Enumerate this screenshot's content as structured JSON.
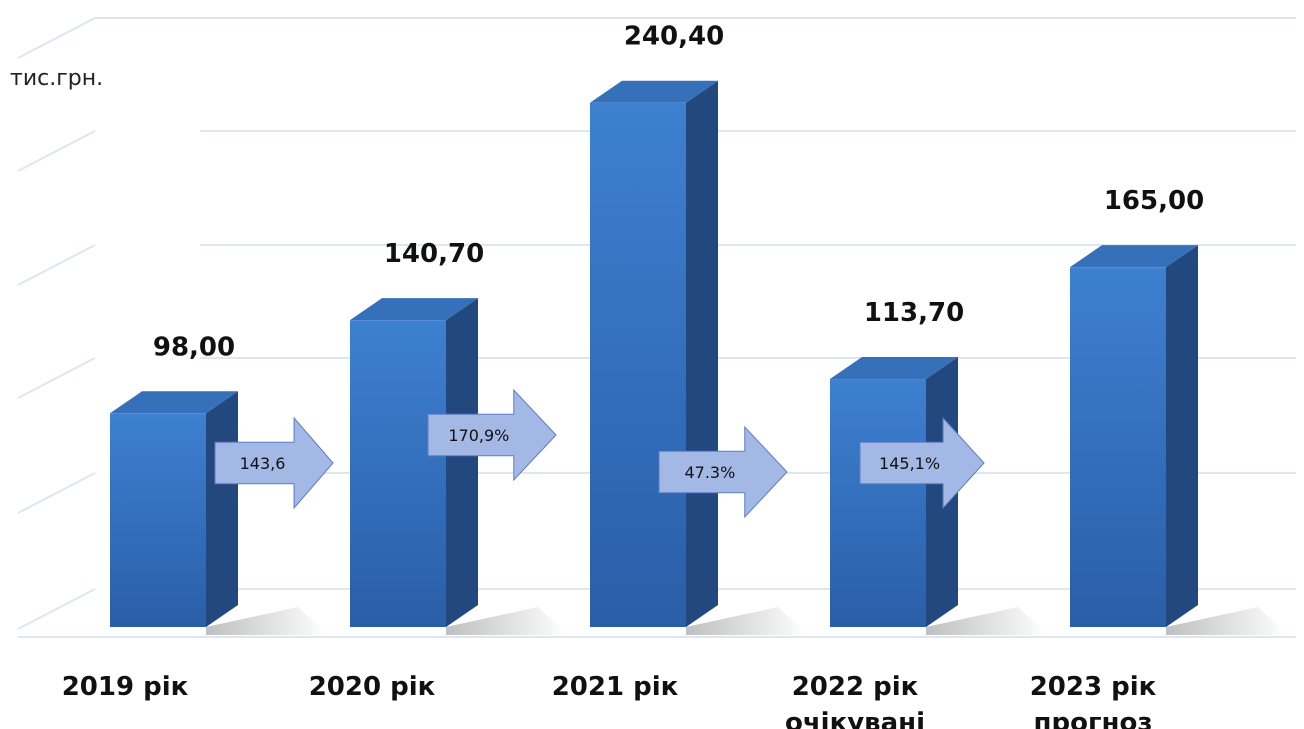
{
  "chart_data": {
    "type": "bar",
    "ylabel": "тис.грн.",
    "ylim": [
      0,
      260
    ],
    "grid": true,
    "categories": [
      [
        "2019 рік"
      ],
      [
        "2020 рік"
      ],
      [
        "2021 рік"
      ],
      [
        "2022 рік",
        "очікувані"
      ],
      [
        "2023 рік",
        "прогноз"
      ]
    ],
    "values": [
      98.0,
      140.7,
      240.4,
      113.7,
      165.0
    ],
    "value_labels": [
      "98,00",
      "140,70",
      "240,40",
      "113,70",
      "165,00"
    ],
    "growth_arrows": [
      {
        "from": "2019 рік",
        "to": "2020 рік",
        "label": "143,6"
      },
      {
        "from": "2020 рік",
        "to": "2021 рік",
        "label": "170,9%"
      },
      {
        "from": "2021 рік",
        "to": "2022 рік",
        "label": "47.3%"
      },
      {
        "from": "2022 рік",
        "to": "2023 рік",
        "label": "145,1%"
      }
    ],
    "colors": {
      "bar_front_top": "#3d80d0",
      "bar_front_bottom": "#2a5ea8",
      "bar_side": "#23487e",
      "bar_top": "#3570b8",
      "grid": "#dbe7f3",
      "arrow_fill": "#a4b8e6",
      "arrow_stroke": "#5d7cc4"
    }
  }
}
